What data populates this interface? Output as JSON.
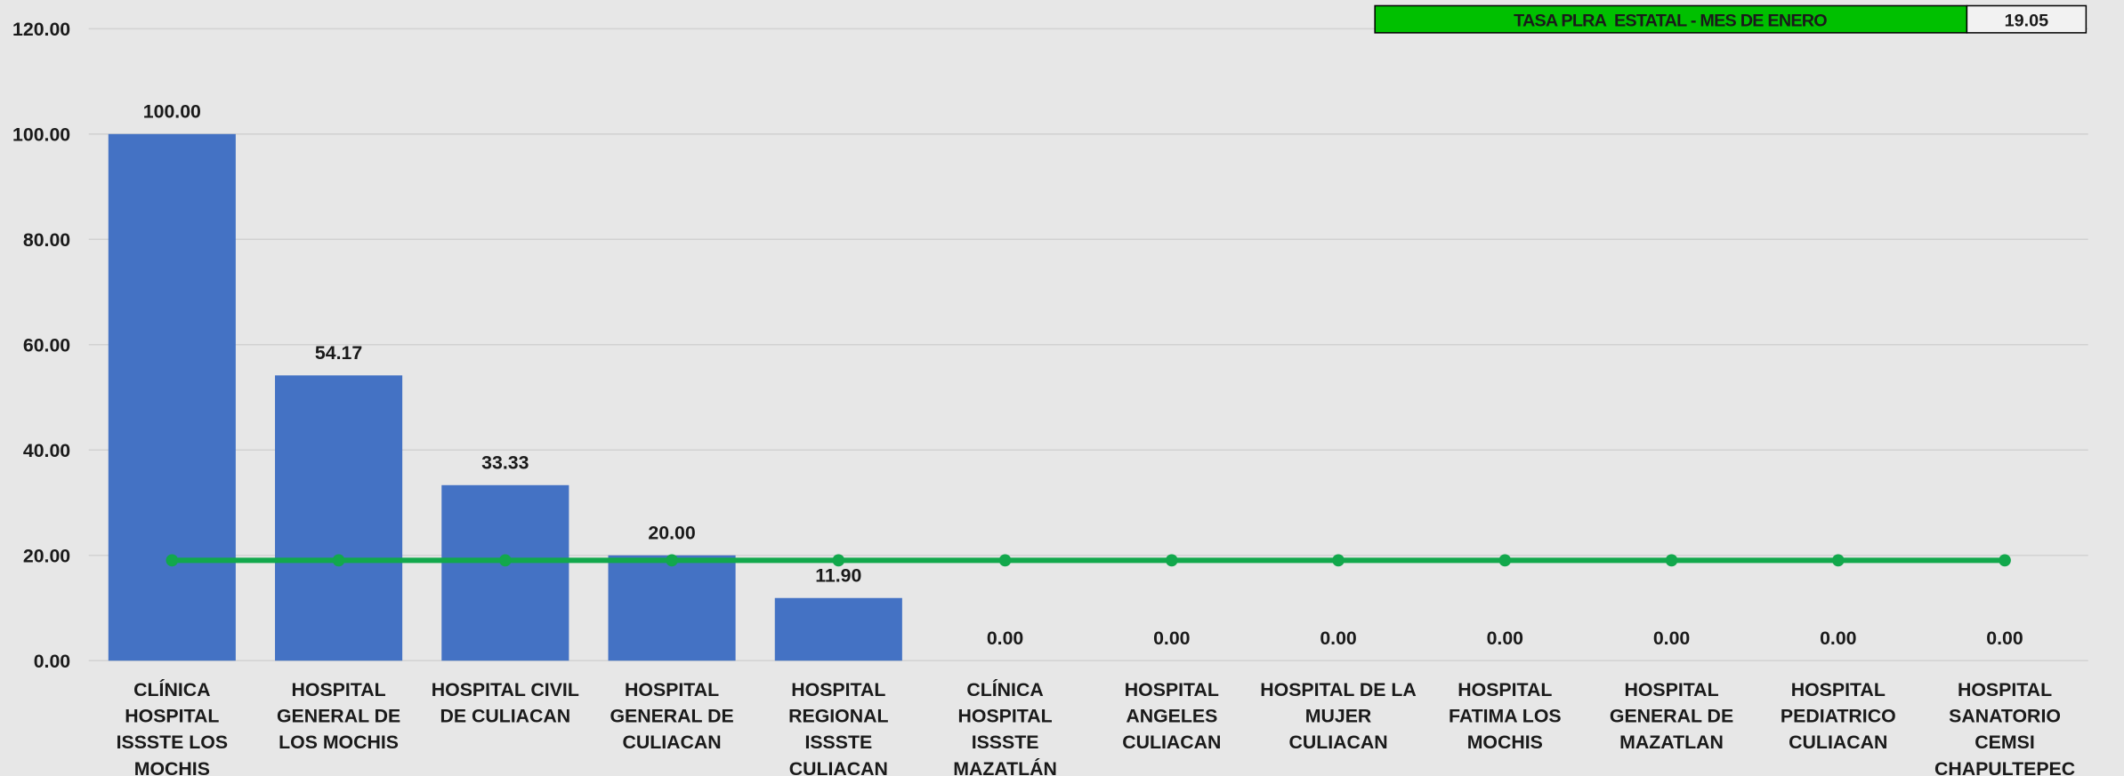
{
  "chart_data": {
    "type": "bar",
    "categories": [
      "CLÍNICA HOSPITAL ISSSTE LOS MOCHIS",
      "HOSPITAL GENERAL DE LOS MOCHIS",
      "HOSPITAL CIVIL DE CULIACAN",
      "HOSPITAL GENERAL DE CULIACAN",
      "HOSPITAL REGIONAL ISSSTE CULIACAN",
      "CLÍNICA HOSPITAL ISSSTE MAZATLÁN",
      "HOSPITAL ANGELES CULIACAN",
      "HOSPITAL DE LA MUJER CULIACAN",
      "HOSPITAL FATIMA LOS MOCHIS",
      "HOSPITAL GENERAL DE MAZATLAN",
      "HOSPITAL PEDIATRICO CULIACAN",
      "HOSPITAL SANATORIO CEMSI CHAPULTEPEC"
    ],
    "series": [
      {
        "type": "bar",
        "color": "#4472c4",
        "values": [
          100,
          54.17,
          33.33,
          20,
          11.9,
          0,
          0,
          0,
          0,
          0,
          0,
          0
        ],
        "value_labels": [
          "100.00",
          "54.17",
          "33.33",
          "20.00",
          "11.90",
          "0.00",
          "0.00",
          "0.00",
          "0.00",
          "0.00",
          "0.00",
          "0.00"
        ]
      },
      {
        "type": "line",
        "color": "#12a84c",
        "values": [
          19.05,
          19.05,
          19.05,
          19.05,
          19.05,
          19.05,
          19.05,
          19.05,
          19.05,
          19.05,
          19.05,
          19.05
        ]
      }
    ],
    "ylim": [
      0,
      120
    ],
    "yticks": [
      {
        "value": 0,
        "label": "0.00"
      },
      {
        "value": 20,
        "label": "20.00"
      },
      {
        "value": 40,
        "label": "40.00"
      },
      {
        "value": 60,
        "label": "60.00"
      },
      {
        "value": 80,
        "label": "80.00"
      },
      {
        "value": 100,
        "label": "100.00"
      },
      {
        "value": 120,
        "label": "120.00"
      }
    ],
    "grid": true,
    "reference_box": {
      "label": "TASA PLRA  ESTATAL - MES DE ENERO",
      "value": 19.05,
      "color": "#00c000"
    }
  }
}
